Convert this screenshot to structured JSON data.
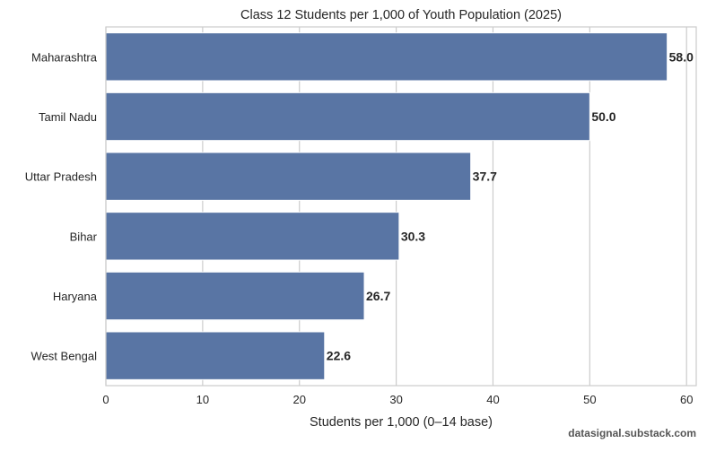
{
  "chart_data": {
    "type": "bar",
    "orientation": "horizontal",
    "title": "Class 12 Students per 1,000 of Youth Population (2025)",
    "xlabel": "Students per 1,000 (0–14 base)",
    "ylabel": "",
    "categories": [
      "Maharashtra",
      "Tamil Nadu",
      "Uttar Pradesh",
      "Bihar",
      "Haryana",
      "West Bengal"
    ],
    "values": [
      58.0,
      50.0,
      37.7,
      30.3,
      26.7,
      22.6
    ],
    "data_labels": [
      "58.0",
      "50.0",
      "37.7",
      "30.3",
      "26.7",
      "22.6"
    ],
    "xlim": [
      0,
      61
    ],
    "xticks": [
      0,
      10,
      20,
      30,
      40,
      50,
      60
    ],
    "grid": "vertical",
    "bar_color": "#5975a4",
    "grid_color": "#cccccc"
  },
  "footer": {
    "source": "datasignal.substack.com"
  }
}
